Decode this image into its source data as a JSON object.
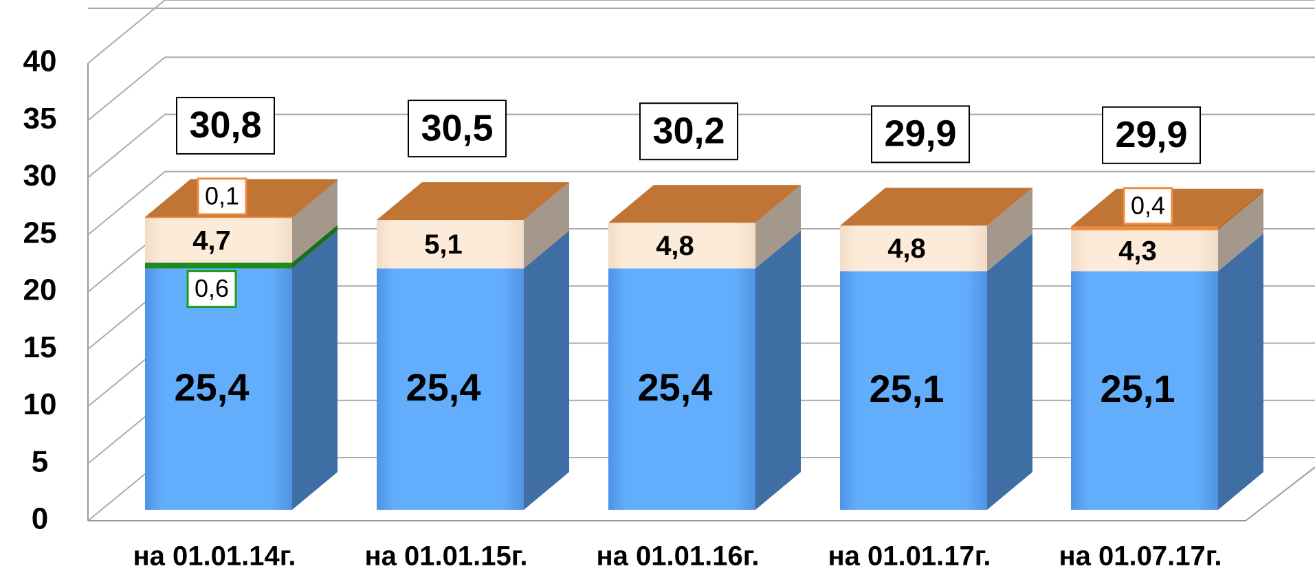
{
  "chart_data": {
    "type": "bar",
    "stacked": true,
    "style": "3d",
    "categories": [
      "на 01.01.14г.",
      "на 01.01.15г.",
      "на 01.01.16г.",
      "на 01.01.17г.",
      "на 01.07.17г."
    ],
    "series": [
      {
        "values": [
          25.4,
          25.4,
          25.4,
          25.1,
          25.1
        ],
        "labels": [
          "25,4",
          "25,4",
          "25,4",
          "25,1",
          "25,1"
        ],
        "color": "#63aefc",
        "side_color": "#3f6ea4"
      },
      {
        "values": [
          0.6,
          0,
          0,
          0,
          0
        ],
        "labels": [
          "0,6",
          "",
          "",
          "",
          ""
        ],
        "color": "#1f8a1f",
        "side_color": "#1a6f1a",
        "label_border": "#1f9a1f"
      },
      {
        "values": [
          4.7,
          5.1,
          4.8,
          4.8,
          4.3
        ],
        "labels": [
          "4,7",
          "5,1",
          "4,8",
          "4,8",
          "4,3"
        ],
        "color": "#fdebd9",
        "side_color": "#a4988d"
      },
      {
        "values": [
          0.1,
          0,
          0,
          0,
          0.4
        ],
        "labels": [
          "0,1",
          "",
          "",
          "",
          "0,4"
        ],
        "color": "#f08a3c",
        "side_color": "#b8702e",
        "label_border": "#f08a3c"
      }
    ],
    "totals": [
      "30,8",
      "30,5",
      "30,2",
      "29,9",
      "29,9"
    ],
    "ylim": [
      0,
      40
    ],
    "yticks": [
      0,
      5,
      10,
      15,
      20,
      25,
      30,
      35,
      40
    ],
    "grid": true,
    "colors": {
      "top_face": "#c07535",
      "wall_grid": "#aaaaaa"
    }
  }
}
